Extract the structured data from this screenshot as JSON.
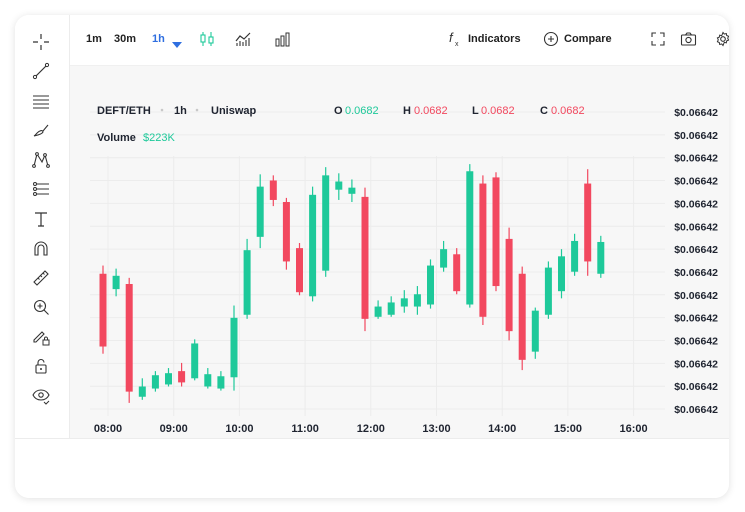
{
  "toolbar": {
    "timeframes": [
      "1m",
      "30m",
      "1h"
    ],
    "active_timeframe": "1h",
    "indicators_label": "Indicators",
    "compare_label": "Compare",
    "accent_color": "#2f6fe0"
  },
  "sidebar": {
    "tools": [
      "crosshair-icon",
      "trend-line-icon",
      "horizontal-lines-icon",
      "brush-icon",
      "pattern-icon",
      "measure-icon",
      "text-icon",
      "magnet-icon",
      "ruler-icon",
      "zoom-in-icon",
      "lock-drawing-icon",
      "lock-icon",
      "eye-icon"
    ]
  },
  "legend": {
    "pair": "DEFT/ETH",
    "interval": "1h",
    "exchange": "Uniswap",
    "o_label": "O",
    "o_value": "0.0682",
    "h_label": "H",
    "h_value": "0.0682",
    "l_label": "L",
    "l_value": "0.0682",
    "c_label": "C",
    "c_value": "0.0682",
    "volume_label": "Volume",
    "volume_value": "$223K",
    "up_color": "#1ec99a",
    "down_color": "#f2485f"
  },
  "chart_data": {
    "type": "candlestick",
    "x_ticks": [
      "08:00",
      "09:00",
      "10:00",
      "11:00",
      "12:00",
      "13:00",
      "14:00",
      "15:00",
      "16:00"
    ],
    "y_ticks": [
      "$0.06642",
      "$0.06642",
      "$0.06642",
      "$0.06642",
      "$0.06642",
      "$0.06642",
      "$0.06642",
      "$0.06642",
      "$0.06642",
      "$0.06642",
      "$0.06642",
      "$0.06642",
      "$0.06642",
      "$0.06642"
    ],
    "grid": true,
    "candles": [
      {
        "o": 13.0,
        "c": 5.9,
        "h": 13.8,
        "l": 5.2
      },
      {
        "o": 11.5,
        "c": 12.8,
        "h": 13.5,
        "l": 10.8
      },
      {
        "o": 12.0,
        "c": 1.5,
        "h": 12.6,
        "l": 0.4
      },
      {
        "o": 1.0,
        "c": 2.0,
        "h": 2.8,
        "l": 0.7
      },
      {
        "o": 1.8,
        "c": 3.1,
        "h": 3.5,
        "l": 1.5
      },
      {
        "o": 2.2,
        "c": 3.3,
        "h": 3.8,
        "l": 2.0
      },
      {
        "o": 3.5,
        "c": 2.4,
        "h": 4.3,
        "l": 2.0
      },
      {
        "o": 2.8,
        "c": 6.2,
        "h": 6.6,
        "l": 2.6
      },
      {
        "o": 2.0,
        "c": 3.2,
        "h": 3.8,
        "l": 1.8
      },
      {
        "o": 1.8,
        "c": 3.0,
        "h": 3.5,
        "l": 1.6
      },
      {
        "o": 2.9,
        "c": 8.7,
        "h": 9.9,
        "l": 1.6
      },
      {
        "o": 9.0,
        "c": 15.3,
        "h": 16.4,
        "l": 8.6
      },
      {
        "o": 16.6,
        "c": 21.5,
        "h": 22.7,
        "l": 15.5
      },
      {
        "o": 22.1,
        "c": 20.2,
        "h": 22.6,
        "l": 19.6
      },
      {
        "o": 20.0,
        "c": 14.2,
        "h": 20.4,
        "l": 13.4
      },
      {
        "o": 15.5,
        "c": 11.2,
        "h": 16.0,
        "l": 10.9
      },
      {
        "o": 10.8,
        "c": 20.7,
        "h": 21.5,
        "l": 10.3
      },
      {
        "o": 13.3,
        "c": 22.6,
        "h": 23.4,
        "l": 12.7
      },
      {
        "o": 21.2,
        "c": 22.0,
        "h": 22.8,
        "l": 20.2
      },
      {
        "o": 20.8,
        "c": 21.4,
        "h": 22.2,
        "l": 20.0
      },
      {
        "o": 20.5,
        "c": 8.6,
        "h": 21.4,
        "l": 7.4
      },
      {
        "o": 8.8,
        "c": 9.8,
        "h": 10.4,
        "l": 8.6
      },
      {
        "o": 9.0,
        "c": 10.2,
        "h": 10.8,
        "l": 8.8
      },
      {
        "o": 9.8,
        "c": 10.6,
        "h": 11.4,
        "l": 9.2
      },
      {
        "o": 9.8,
        "c": 11.0,
        "h": 11.8,
        "l": 9.0
      },
      {
        "o": 10.0,
        "c": 13.8,
        "h": 14.4,
        "l": 9.6
      },
      {
        "o": 13.6,
        "c": 15.4,
        "h": 16.2,
        "l": 13.2
      },
      {
        "o": 14.9,
        "c": 11.3,
        "h": 15.5,
        "l": 11.0
      },
      {
        "o": 10.0,
        "c": 23.0,
        "h": 23.7,
        "l": 9.7
      },
      {
        "o": 21.8,
        "c": 8.8,
        "h": 22.6,
        "l": 8.0
      },
      {
        "o": 22.4,
        "c": 11.8,
        "h": 22.9,
        "l": 11.3
      },
      {
        "o": 16.4,
        "c": 7.4,
        "h": 17.5,
        "l": 6.5
      },
      {
        "o": 13.0,
        "c": 4.6,
        "h": 13.7,
        "l": 3.6
      },
      {
        "o": 5.4,
        "c": 9.4,
        "h": 9.7,
        "l": 4.7
      },
      {
        "o": 9.0,
        "c": 13.6,
        "h": 14.2,
        "l": 8.6
      },
      {
        "o": 11.3,
        "c": 14.7,
        "h": 15.4,
        "l": 10.6
      },
      {
        "o": 13.2,
        "c": 16.2,
        "h": 16.9,
        "l": 12.8
      },
      {
        "o": 21.8,
        "c": 14.2,
        "h": 23.2,
        "l": 12.8
      },
      {
        "o": 13.0,
        "c": 16.1,
        "h": 16.7,
        "l": 12.6
      }
    ]
  }
}
